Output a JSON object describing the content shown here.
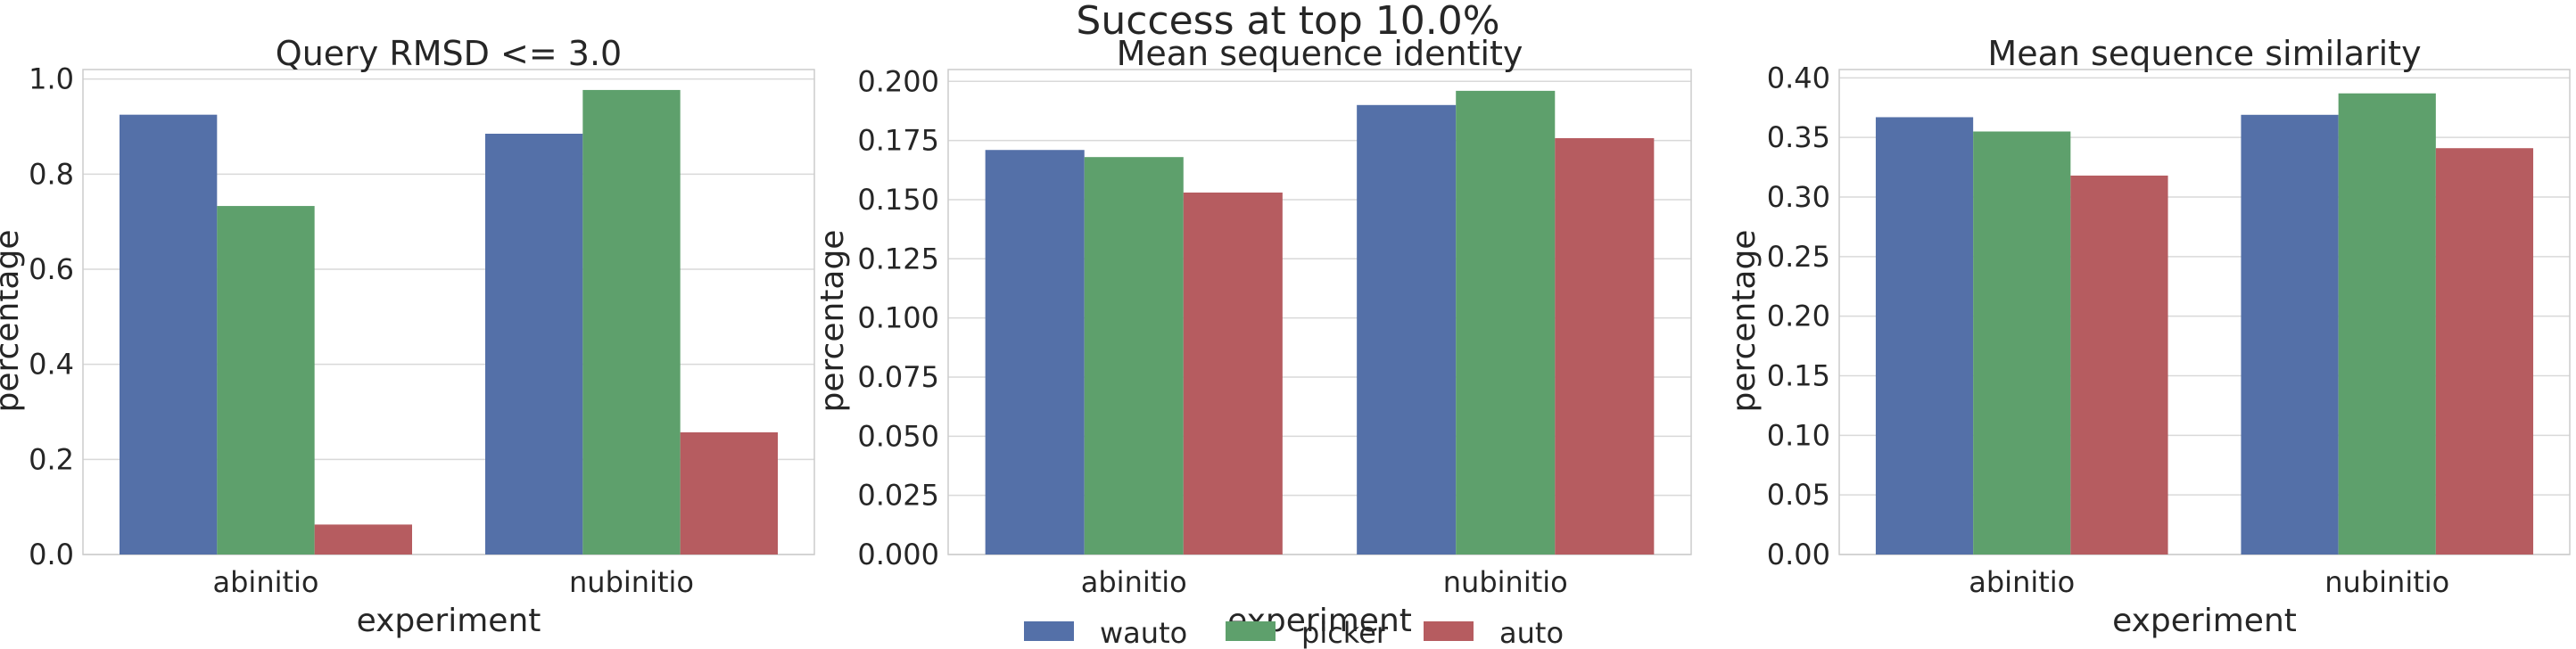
{
  "figure": {
    "suptitle": "Success at top 10.0%"
  },
  "legend": {
    "entries": [
      {
        "label": "wauto",
        "color": "#5470a8"
      },
      {
        "label": "picker",
        "color": "#5ea06c"
      },
      {
        "label": "auto",
        "color": "#b65c60"
      }
    ],
    "placement": "bottom-center"
  },
  "chart_data": [
    {
      "type": "bar",
      "title": "Query RMSD <= 3.0",
      "xlabel": "experiment",
      "ylabel": "percentage",
      "categories": [
        "abinitio",
        "nubinitio"
      ],
      "ylim": [
        0,
        1.02
      ],
      "yticks": [
        "0.0",
        "0.2",
        "0.4",
        "0.6",
        "0.8",
        "1.0"
      ],
      "grid": true,
      "series": [
        {
          "name": "wauto",
          "values": [
            0.925,
            0.885
          ]
        },
        {
          "name": "picker",
          "values": [
            0.733,
            0.977
          ]
        },
        {
          "name": "auto",
          "values": [
            0.063,
            0.257
          ]
        }
      ]
    },
    {
      "type": "bar",
      "title": "Mean sequence identity",
      "xlabel": "experiment",
      "ylabel": "percentage",
      "categories": [
        "abinitio",
        "nubinitio"
      ],
      "ylim": [
        0,
        0.205
      ],
      "yticks": [
        "0.000",
        "0.025",
        "0.050",
        "0.075",
        "0.100",
        "0.125",
        "0.150",
        "0.175",
        "0.200"
      ],
      "grid": true,
      "series": [
        {
          "name": "wauto",
          "values": [
            0.171,
            0.19
          ]
        },
        {
          "name": "picker",
          "values": [
            0.168,
            0.196
          ]
        },
        {
          "name": "auto",
          "values": [
            0.153,
            0.176
          ]
        }
      ]
    },
    {
      "type": "bar",
      "title": "Mean sequence similarity",
      "xlabel": "experiment",
      "ylabel": "percentage",
      "categories": [
        "abinitio",
        "nubinitio"
      ],
      "ylim": [
        0,
        0.407
      ],
      "yticks": [
        "0.00",
        "0.05",
        "0.10",
        "0.15",
        "0.20",
        "0.25",
        "0.30",
        "0.35",
        "0.40"
      ],
      "grid": true,
      "series": [
        {
          "name": "wauto",
          "values": [
            0.367,
            0.369
          ]
        },
        {
          "name": "picker",
          "values": [
            0.355,
            0.387
          ]
        },
        {
          "name": "auto",
          "values": [
            0.318,
            0.341
          ]
        }
      ]
    }
  ]
}
